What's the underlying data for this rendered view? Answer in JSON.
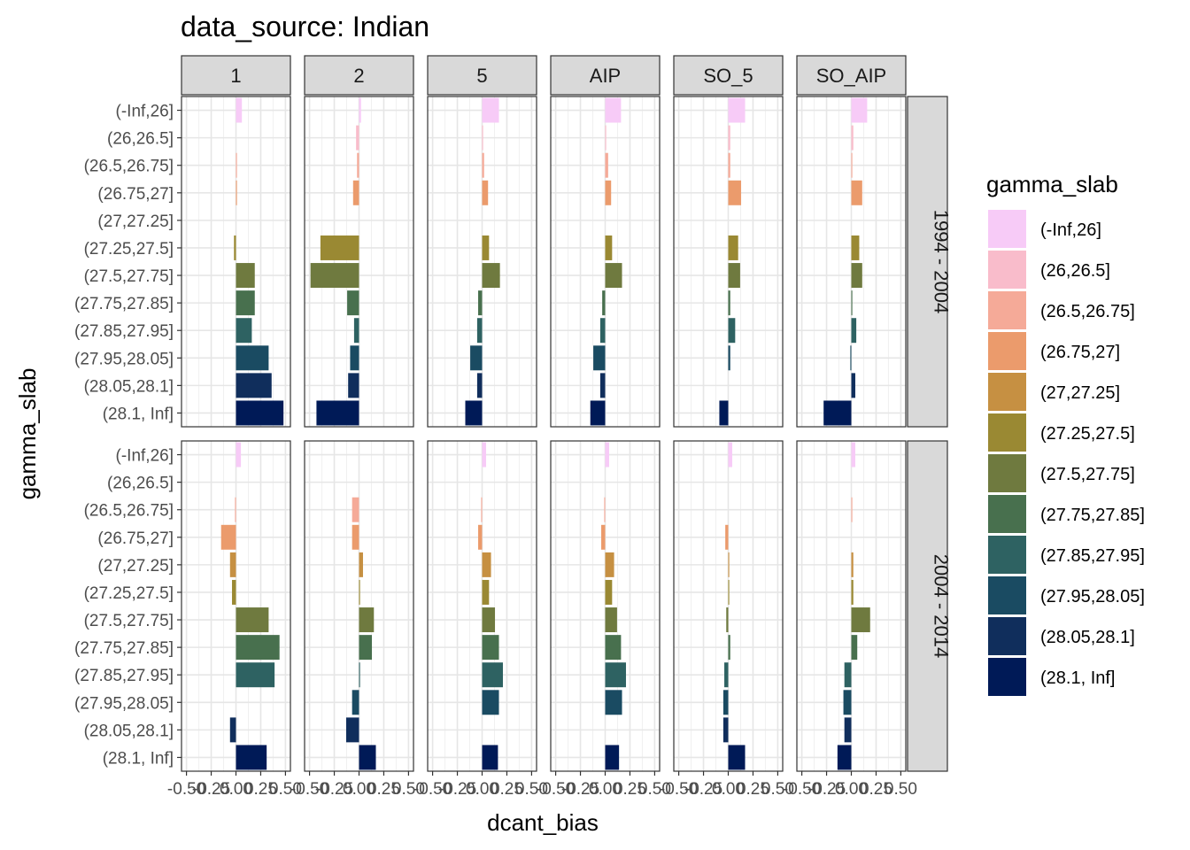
{
  "chart_data": {
    "type": "bar",
    "title": "data_source: Indian",
    "xlabel": "dcant_bias",
    "ylabel": "gamma_slab",
    "legend_title": "gamma_slab",
    "legend_position": "right",
    "grid": true,
    "xlim": [
      -0.55,
      0.55
    ],
    "x_ticks": [
      -0.5,
      -0.25,
      0.0,
      0.25,
      0.5
    ],
    "x_tick_labels": [
      "-0.50",
      "-0.25",
      "0.00",
      "0.25",
      "0.50"
    ],
    "columns": [
      "1",
      "2",
      "5",
      "AIP",
      "SO_5",
      "SO_AIP"
    ],
    "rows": [
      "1994 - 2004",
      "2004 - 2014"
    ],
    "categories": [
      "(-Inf,26]",
      "(26,26.5]",
      "(26.5,26.75]",
      "(26.75,27]",
      "(27,27.25]",
      "(27.25,27.5]",
      "(27.5,27.75]",
      "(27.75,27.85]",
      "(27.85,27.95]",
      "(27.95,28.05]",
      "(28.05,28.1]",
      "(28.1, Inf]"
    ],
    "colors": [
      "#f7cbf7",
      "#f9bccb",
      "#f5aa98",
      "#eb9b6c",
      "#c69042",
      "#9a8933",
      "#6f7a3f",
      "#48704e",
      "#2e6262",
      "#1a4b62",
      "#102e5c",
      "#001a57"
    ],
    "panels": [
      {
        "column": "1",
        "row": "1994 - 2004",
        "values": [
          0.06,
          0.0,
          0.01,
          0.01,
          0.0,
          -0.02,
          0.19,
          0.19,
          0.16,
          0.33,
          0.36,
          0.48
        ]
      },
      {
        "column": "2",
        "row": "1994 - 2004",
        "values": [
          0.02,
          -0.03,
          -0.02,
          -0.06,
          0.0,
          -0.39,
          -0.49,
          -0.12,
          -0.05,
          -0.09,
          -0.11,
          -0.43
        ]
      },
      {
        "column": "5",
        "row": "1994 - 2004",
        "values": [
          0.17,
          0.01,
          0.02,
          0.06,
          0.0,
          0.07,
          0.18,
          -0.04,
          -0.05,
          -0.12,
          -0.05,
          -0.17
        ]
      },
      {
        "column": "AIP",
        "row": "1994 - 2004",
        "values": [
          0.16,
          0.01,
          0.03,
          0.06,
          0.0,
          0.07,
          0.17,
          -0.03,
          -0.05,
          -0.12,
          -0.05,
          -0.15
        ]
      },
      {
        "column": "SO_5",
        "row": "1994 - 2004",
        "values": [
          0.17,
          0.02,
          0.02,
          0.13,
          0.0,
          0.1,
          0.12,
          0.02,
          0.07,
          0.02,
          0.0,
          -0.09
        ]
      },
      {
        "column": "SO_AIP",
        "row": "1994 - 2004",
        "values": [
          0.16,
          0.02,
          0.01,
          0.11,
          0.0,
          0.08,
          0.11,
          0.01,
          0.05,
          -0.01,
          0.04,
          -0.28
        ]
      },
      {
        "column": "1",
        "row": "2004 - 2014",
        "values": [
          0.05,
          0.0,
          -0.01,
          -0.15,
          -0.06,
          -0.04,
          0.33,
          0.44,
          0.39,
          0.0,
          -0.06,
          0.31
        ]
      },
      {
        "column": "2",
        "row": "2004 - 2014",
        "values": [
          0.0,
          0.0,
          -0.07,
          -0.07,
          0.04,
          0.01,
          0.15,
          0.13,
          0.01,
          -0.07,
          -0.13,
          0.17
        ]
      },
      {
        "column": "5",
        "row": "2004 - 2014",
        "values": [
          0.04,
          0.0,
          -0.01,
          -0.04,
          0.09,
          0.07,
          0.13,
          0.17,
          0.21,
          0.17,
          0.0,
          0.16
        ]
      },
      {
        "column": "AIP",
        "row": "2004 - 2014",
        "values": [
          0.04,
          0.0,
          -0.01,
          -0.04,
          0.09,
          0.07,
          0.12,
          0.16,
          0.21,
          0.17,
          0.0,
          0.14
        ]
      },
      {
        "column": "SO_5",
        "row": "2004 - 2014",
        "values": [
          0.04,
          0.0,
          0.0,
          -0.03,
          0.01,
          0.01,
          -0.02,
          0.02,
          -0.04,
          -0.05,
          -0.05,
          0.17
        ]
      },
      {
        "column": "SO_AIP",
        "row": "2004 - 2014",
        "values": [
          0.04,
          0.0,
          0.01,
          0.0,
          0.02,
          0.02,
          0.19,
          0.06,
          -0.07,
          -0.08,
          -0.07,
          -0.14
        ]
      }
    ]
  }
}
